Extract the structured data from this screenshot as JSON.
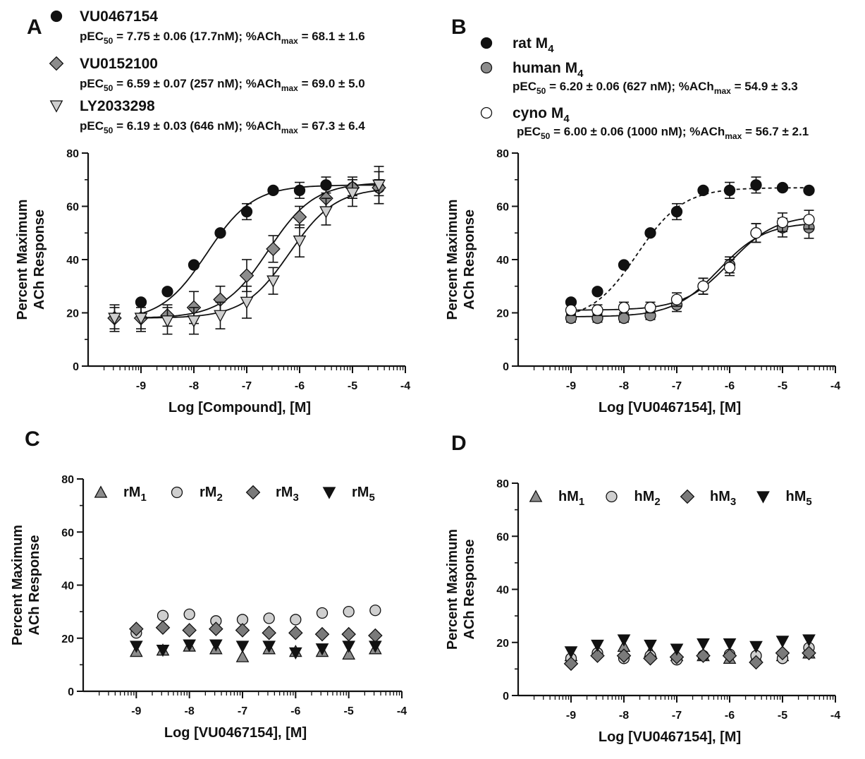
{
  "chart_data": [
    {
      "panel": "A",
      "type": "scatter",
      "fit": "sigmoid",
      "xlabel": "Log [Compound], [M]",
      "ylabel_line1": "Percent Maximum",
      "ylabel_line2": "ACh Response",
      "xlim": [
        -10,
        -4
      ],
      "ylim": [
        0,
        80
      ],
      "xticks": [
        -9,
        -8,
        -7,
        -6,
        -5,
        -4
      ],
      "yticks": [
        0,
        20,
        40,
        60,
        80
      ],
      "legend_placement": "top",
      "series": [
        {
          "name": "VU0467154",
          "stat_pre": "pEC",
          "stat_sub": "50",
          "stat_mid": " = 7.75 ± 0.06 (17.7nM); %ACh",
          "stat_sub2": "max",
          "stat_post": " = 68.1 ± 1.6",
          "marker": "circle",
          "fill": "#111111",
          "line": "solid",
          "x": [
            -9,
            -8.5,
            -8,
            -7.5,
            -7,
            -6.5,
            -6,
            -5.5,
            -5,
            -4.5
          ],
          "y": [
            24,
            28,
            38,
            50,
            58,
            66,
            66,
            68,
            67,
            67
          ],
          "err": [
            0,
            0,
            0,
            0,
            3,
            0,
            3,
            3,
            3,
            3
          ],
          "bottom": 17,
          "top": 68,
          "logec50": -7.75
        },
        {
          "name": "VU0152100",
          "stat_pre": "pEC",
          "stat_sub": "50",
          "stat_mid": " = 6.59 ± 0.07 (257 nM); %ACh",
          "stat_sub2": "max",
          "stat_post": " = 69.0  ± 5.0",
          "marker": "diamond",
          "fill": "#8c8c8c",
          "line": "solid",
          "x": [
            -9.5,
            -9,
            -8.5,
            -8,
            -7.5,
            -7,
            -6.5,
            -6,
            -5.5,
            -5,
            -4.5
          ],
          "y": [
            18,
            18,
            19,
            22,
            25,
            34,
            44,
            56,
            63,
            67,
            67
          ],
          "err": [
            4,
            4,
            4,
            6,
            5,
            6,
            5,
            4,
            4,
            4,
            6
          ],
          "bottom": 18,
          "top": 69,
          "logec50": -6.59
        },
        {
          "name": "LY2033298",
          "stat_pre": "pEC",
          "stat_sub": "50",
          "stat_mid": " = 6.19 ± 0.03 (646 nM); %ACh",
          "stat_sub2": "max",
          "stat_post": " = 67.3  ± 6.4",
          "marker": "triangle-down",
          "fill": "#cfcfcf",
          "line": "solid",
          "x": [
            -9.5,
            -9,
            -8.5,
            -8,
            -7.5,
            -7,
            -6.5,
            -6,
            -5.5,
            -5,
            -4.5
          ],
          "y": [
            18,
            18,
            17,
            17,
            19,
            24,
            32,
            47,
            58,
            65,
            68
          ],
          "err": [
            5,
            5,
            5,
            5,
            5,
            6,
            5,
            6,
            5,
            5,
            7
          ],
          "bottom": 18,
          "top": 67,
          "logec50": -6.19
        }
      ]
    },
    {
      "panel": "B",
      "type": "scatter",
      "fit": "sigmoid",
      "xlabel": "Log [VU0467154], [M]",
      "ylabel_line1": "Percent Maximum",
      "ylabel_line2": "ACh Response",
      "xlim": [
        -10,
        -4
      ],
      "ylim": [
        0,
        80
      ],
      "xticks": [
        -9,
        -8,
        -7,
        -6,
        -5,
        -4
      ],
      "yticks": [
        0,
        20,
        40,
        60,
        80
      ],
      "legend_placement": "top",
      "series": [
        {
          "name_pre": "rat M",
          "name_sub": "4",
          "marker": "circle",
          "fill": "#111111",
          "line": "dashed",
          "x": [
            -9,
            -8.5,
            -8,
            -7.5,
            -7,
            -6.5,
            -6,
            -5.5,
            -5,
            -4.5
          ],
          "y": [
            24,
            28,
            38,
            50,
            58,
            66,
            66,
            68,
            67,
            66
          ],
          "err": [
            0,
            0,
            0,
            0,
            3,
            0,
            3,
            3,
            0,
            0
          ],
          "bottom": 17,
          "top": 67,
          "logec50": -7.75
        },
        {
          "name_pre": "human M",
          "name_sub": "4",
          "stat_pre": "pEC",
          "stat_sub": "50",
          "stat_mid": " =  6.20 ± 0.06 (627 nM); %ACh",
          "stat_sub2": "max",
          "stat_post": " = 54.9 ± 3.3",
          "marker": "circle",
          "fill": "#8c8c8c",
          "line": "solid",
          "x": [
            -9,
            -8.5,
            -8,
            -7.5,
            -7,
            -6.5,
            -6,
            -5.5,
            -5,
            -4.5
          ],
          "y": [
            18,
            18,
            18,
            19,
            23,
            30,
            38,
            50,
            52,
            52
          ],
          "err": [
            1.5,
            1.5,
            1.5,
            1.5,
            2.5,
            3,
            3,
            3.5,
            3.5,
            4
          ],
          "bottom": 18.5,
          "top": 54,
          "logec50": -6.2
        },
        {
          "name_pre": "cyno M",
          "name_sub": "4",
          "stat_pre": "pEC",
          "stat_sub": "50",
          "stat_mid": " = 6.00 ± 0.06 (1000 nM); %ACh",
          "stat_sub2": "max",
          "stat_post": " = 56.7 ± 2.1",
          "marker": "circle",
          "fill": "#ffffff",
          "line": "solid",
          "x": [
            -9,
            -8.5,
            -8,
            -7.5,
            -7,
            -6.5,
            -6,
            -5.5,
            -5,
            -4.5
          ],
          "y": [
            21,
            21,
            22,
            22,
            25,
            30,
            37,
            50,
            54,
            55
          ],
          "err": [
            2,
            2,
            2,
            2,
            2.5,
            3,
            3,
            3.5,
            3.5,
            3.5
          ],
          "bottom": 21,
          "top": 56.7,
          "logec50": -6.0
        }
      ]
    },
    {
      "panel": "C",
      "type": "scatter",
      "xlabel": "Log [VU0467154], [M]",
      "ylabel_line1": "Percent Maximum",
      "ylabel_line2": "ACh Response",
      "xlim": [
        -10,
        -4
      ],
      "ylim": [
        0,
        80
      ],
      "xticks": [
        -9,
        -8,
        -7,
        -6,
        -5,
        -4
      ],
      "yticks": [
        0,
        20,
        40,
        60,
        80
      ],
      "legend_placement": "top-inside",
      "series": [
        {
          "name_pre": "rM",
          "name_sub": "1",
          "marker": "triangle-up",
          "fill": "#8c8c8c",
          "x": [
            -9,
            -8.5,
            -8,
            -7.5,
            -7,
            -6.5,
            -6,
            -5.5,
            -5,
            -4.5
          ],
          "y": [
            15,
            15.5,
            17,
            16,
            13,
            16,
            15,
            15,
            14,
            16
          ]
        },
        {
          "name_pre": "rM",
          "name_sub": "2",
          "marker": "circle",
          "fill": "#cfcfcf",
          "x": [
            -9,
            -8.5,
            -8,
            -7.5,
            -7,
            -6.5,
            -6,
            -5.5,
            -5,
            -4.5
          ],
          "y": [
            22,
            28.5,
            29,
            26.5,
            27,
            27.5,
            27,
            29.5,
            30,
            30.5
          ]
        },
        {
          "name_pre": "rM",
          "name_sub": "3",
          "marker": "diamond",
          "fill": "#7a7a7a",
          "x": [
            -9,
            -8.5,
            -8,
            -7.5,
            -7,
            -6.5,
            -6,
            -5.5,
            -5,
            -4.5
          ],
          "y": [
            23.5,
            24,
            23,
            23.5,
            23,
            22,
            22,
            21.5,
            21.5,
            21
          ]
        },
        {
          "name_pre": "rM",
          "name_sub": "5",
          "marker": "triangle-down",
          "fill": "#111111",
          "x": [
            -9,
            -8.5,
            -8,
            -7.5,
            -7,
            -6.5,
            -6,
            -5.5,
            -5,
            -4.5
          ],
          "y": [
            17,
            15.5,
            17.5,
            17.5,
            17,
            17,
            14.5,
            16,
            17,
            17
          ]
        }
      ]
    },
    {
      "panel": "D",
      "type": "scatter",
      "xlabel": "Log [VU0467154], [M]",
      "ylabel_line1": "Percent Maximum",
      "ylabel_line2": "ACh Response",
      "xlim": [
        -10,
        -4
      ],
      "ylim": [
        0,
        80
      ],
      "xticks": [
        -9,
        -8,
        -7,
        -6,
        -5,
        -4
      ],
      "yticks": [
        0,
        20,
        40,
        60,
        80
      ],
      "legend_placement": "top-inside",
      "series": [
        {
          "name_pre": "hM",
          "name_sub": "1",
          "marker": "triangle-up",
          "fill": "#8c8c8c",
          "x": [
            -9,
            -8.5,
            -8,
            -7.5,
            -7,
            -6.5,
            -6,
            -5.5,
            -5,
            -4.5
          ],
          "y": [
            15,
            17,
            18.5,
            16.5,
            15,
            15,
            14,
            14.5,
            15,
            16
          ]
        },
        {
          "name_pre": "hM",
          "name_sub": "2",
          "marker": "circle",
          "fill": "#cfcfcf",
          "x": [
            -9,
            -8.5,
            -8,
            -7.5,
            -7,
            -6.5,
            -6,
            -5.5,
            -5,
            -4.5
          ],
          "y": [
            14,
            16,
            14,
            15,
            13.5,
            15,
            15.5,
            15,
            14,
            18
          ]
        },
        {
          "name_pre": "hM",
          "name_sub": "3",
          "marker": "diamond",
          "fill": "#7a7a7a",
          "x": [
            -9,
            -8.5,
            -8,
            -7.5,
            -7,
            -6.5,
            -6,
            -5.5,
            -5,
            -4.5
          ],
          "y": [
            12,
            15,
            15,
            14,
            14.5,
            15,
            15,
            12.5,
            16,
            16
          ]
        },
        {
          "name_pre": "hM",
          "name_sub": "5",
          "marker": "triangle-down",
          "fill": "#111111",
          "x": [
            -9,
            -8.5,
            -8,
            -7.5,
            -7,
            -6.5,
            -6,
            -5.5,
            -5,
            -4.5
          ],
          "y": [
            16.5,
            19,
            21,
            19,
            17.5,
            19.5,
            19.5,
            18.5,
            20.5,
            21
          ]
        }
      ]
    }
  ]
}
